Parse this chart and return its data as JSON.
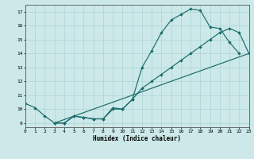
{
  "xlabel": "Humidex (Indice chaleur)",
  "bg_color": "#cce8e8",
  "grid_color": "#aad4d4",
  "line_color": "#1a6b6b",
  "xlim": [
    0,
    23
  ],
  "ylim": [
    8.7,
    17.5
  ],
  "xticks": [
    0,
    1,
    2,
    3,
    4,
    5,
    6,
    7,
    8,
    9,
    10,
    11,
    12,
    13,
    14,
    15,
    16,
    17,
    18,
    19,
    20,
    21,
    22,
    23
  ],
  "yticks": [
    9,
    10,
    11,
    12,
    13,
    14,
    15,
    16,
    17
  ],
  "curve1_x": [
    0,
    1,
    2,
    3,
    4,
    5,
    6,
    7,
    8,
    9,
    10,
    11,
    12,
    13,
    14,
    15,
    16,
    17,
    18,
    19,
    20,
    21,
    22
  ],
  "curve1_y": [
    10.4,
    10.1,
    9.5,
    9.0,
    9.0,
    9.5,
    9.4,
    9.3,
    9.3,
    10.1,
    10.0,
    10.7,
    13.0,
    14.2,
    15.5,
    16.4,
    16.8,
    17.2,
    17.1,
    15.9,
    15.8,
    14.8,
    14.0
  ],
  "curve2_x": [
    3,
    4,
    5,
    6,
    7,
    8,
    9,
    10,
    11,
    12,
    13,
    14,
    15,
    16,
    17,
    18,
    19,
    20,
    21,
    22,
    23
  ],
  "curve2_y": [
    9.0,
    9.0,
    9.5,
    9.4,
    9.3,
    9.3,
    10.0,
    10.0,
    10.7,
    11.5,
    12.0,
    12.5,
    13.0,
    13.5,
    14.0,
    14.5,
    15.0,
    15.5,
    15.8,
    15.5,
    14.0
  ],
  "line3_x": [
    3,
    23
  ],
  "line3_y": [
    9.0,
    14.0
  ]
}
